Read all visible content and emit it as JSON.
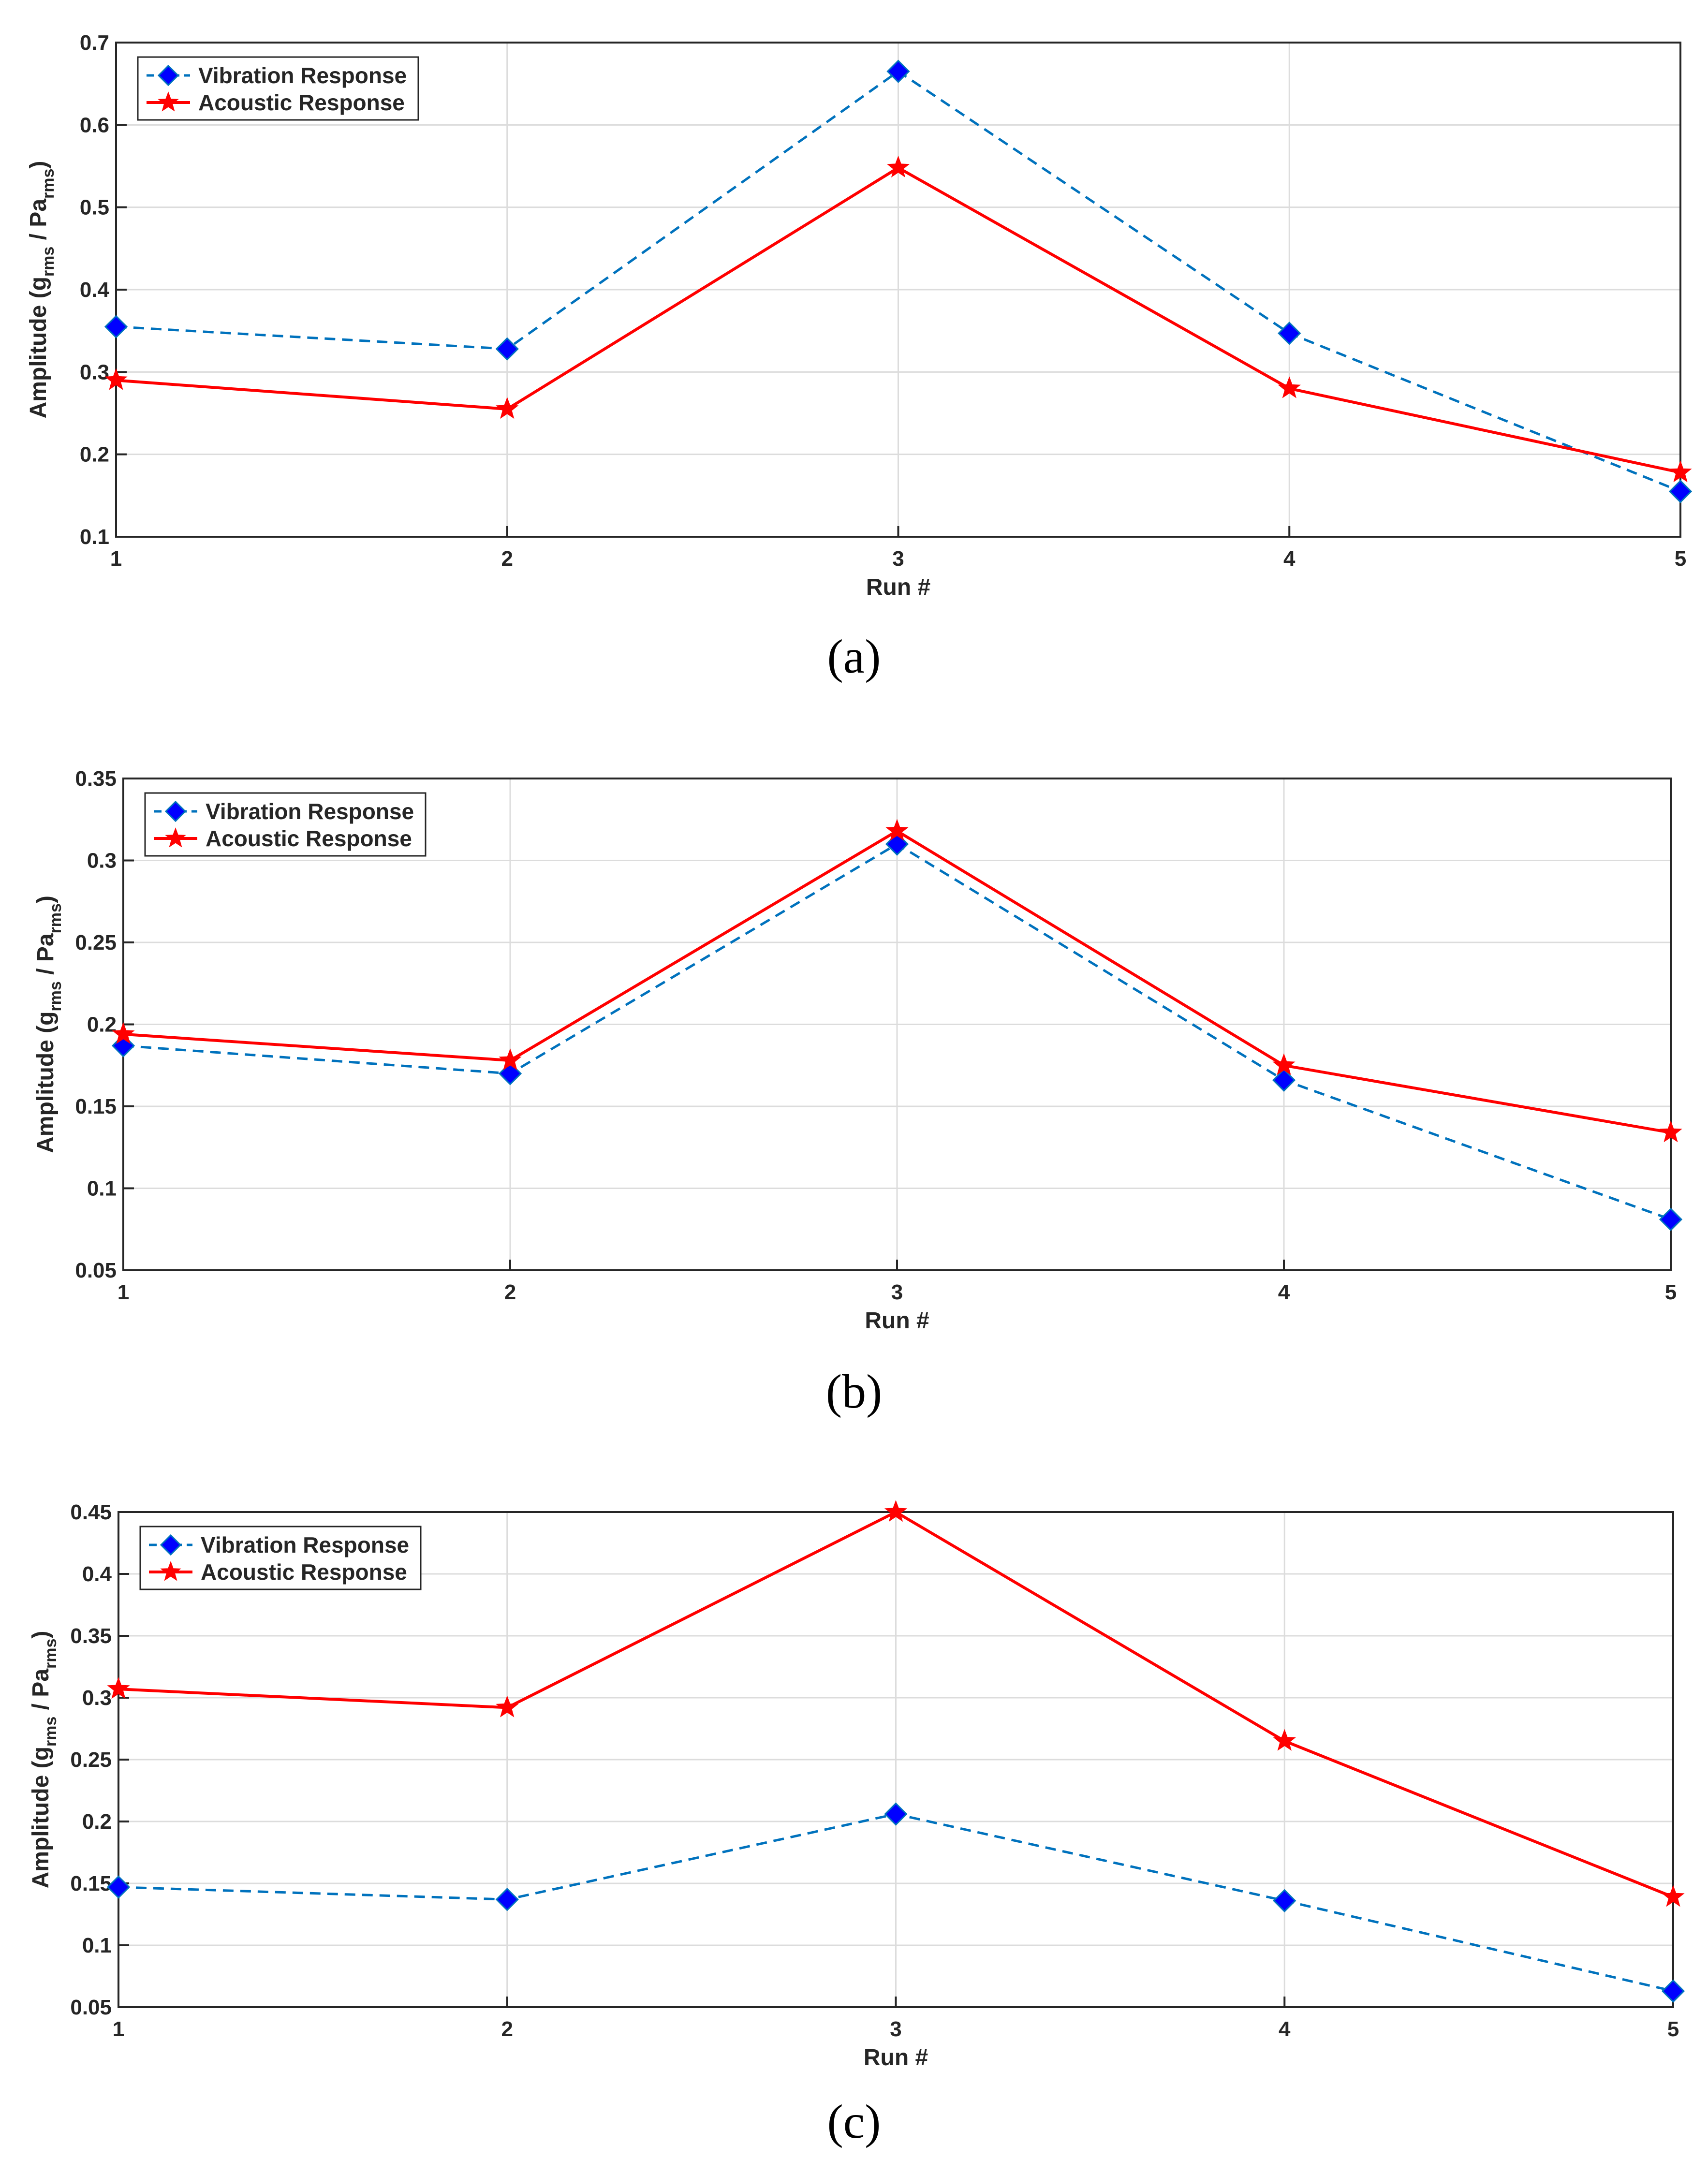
{
  "colors": {
    "vibration": "#0072BD",
    "vibration_marker": "#0000FF",
    "acoustic": "#FF0000",
    "grid": "#DCDCDC",
    "axis": "#262626"
  },
  "chart_data": [
    {
      "id": "a",
      "type": "line",
      "caption": "(a)",
      "xlabel": "Run #",
      "ylabel": "Amplitude (g",
      "ylabel_sub1": "rms",
      "ylabel_mid": " / Pa",
      "ylabel_sub2": "rms",
      "ylabel_end": ")",
      "x": [
        1,
        2,
        3,
        4,
        5
      ],
      "xticks": [
        "1",
        "2",
        "3",
        "4",
        "5"
      ],
      "xlim": [
        1,
        5
      ],
      "ylim": [
        0.1,
        0.7
      ],
      "yticks": [
        0.1,
        0.2,
        0.3,
        0.4,
        0.5,
        0.6,
        0.7
      ],
      "ytick_labels": [
        "0.1",
        "0.2",
        "0.3",
        "0.4",
        "0.5",
        "0.6",
        "0.7"
      ],
      "grid": true,
      "legend_position": "top-left",
      "series": [
        {
          "name": "Vibration Response",
          "style": "dashed",
          "marker": "diamond",
          "values": [
            0.355,
            0.328,
            0.665,
            0.347,
            0.155
          ]
        },
        {
          "name": "Acoustic Response",
          "style": "solid",
          "marker": "star",
          "values": [
            0.29,
            0.255,
            0.548,
            0.28,
            0.178
          ]
        }
      ]
    },
    {
      "id": "b",
      "type": "line",
      "caption": "(b)",
      "xlabel": "Run #",
      "ylabel": "Amplitude (g",
      "ylabel_sub1": "rms",
      "ylabel_mid": " / Pa",
      "ylabel_sub2": "rms",
      "ylabel_end": ")",
      "x": [
        1,
        2,
        3,
        4,
        5
      ],
      "xticks": [
        "1",
        "2",
        "3",
        "4",
        "5"
      ],
      "xlim": [
        1,
        5
      ],
      "ylim": [
        0.05,
        0.35
      ],
      "yticks": [
        0.05,
        0.1,
        0.15,
        0.2,
        0.25,
        0.3,
        0.35
      ],
      "ytick_labels": [
        "0.05",
        "0.1",
        "0.15",
        "0.2",
        "0.25",
        "0.3",
        "0.35"
      ],
      "grid": true,
      "legend_position": "top-left",
      "series": [
        {
          "name": "Vibration Response",
          "style": "dashed",
          "marker": "diamond",
          "values": [
            0.187,
            0.17,
            0.31,
            0.166,
            0.081
          ]
        },
        {
          "name": "Acoustic Response",
          "style": "solid",
          "marker": "star",
          "values": [
            0.194,
            0.178,
            0.318,
            0.175,
            0.134
          ]
        }
      ]
    },
    {
      "id": "c",
      "type": "line",
      "caption": "(c)",
      "xlabel": "Run #",
      "ylabel": "Amplitude (g",
      "ylabel_sub1": "rms",
      "ylabel_mid": " / Pa",
      "ylabel_sub2": "rms",
      "ylabel_end": ")",
      "x": [
        1,
        2,
        3,
        4,
        5
      ],
      "xticks": [
        "1",
        "2",
        "3",
        "4",
        "5"
      ],
      "xlim": [
        1,
        5
      ],
      "ylim": [
        0.05,
        0.45
      ],
      "yticks": [
        0.05,
        0.1,
        0.15,
        0.2,
        0.25,
        0.3,
        0.35,
        0.4,
        0.45
      ],
      "ytick_labels": [
        "0.05",
        "0.1",
        "0.15",
        "0.2",
        "0.25",
        "0.3",
        "0.35",
        "0.4",
        "0.45"
      ],
      "grid": true,
      "legend_position": "top-left",
      "series": [
        {
          "name": "Vibration Response",
          "style": "dashed",
          "marker": "diamond",
          "values": [
            0.147,
            0.137,
            0.206,
            0.136,
            0.063
          ]
        },
        {
          "name": "Acoustic Response",
          "style": "solid",
          "marker": "star",
          "values": [
            0.307,
            0.292,
            0.45,
            0.265,
            0.139
          ]
        }
      ]
    }
  ]
}
